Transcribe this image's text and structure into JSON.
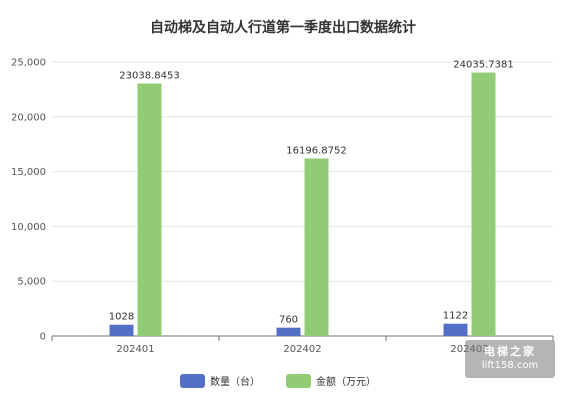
{
  "chart_data": {
    "type": "bar",
    "title": "自动梯及自动人行道第一季度出口数据统计",
    "categories": [
      "202401",
      "202402",
      "202403"
    ],
    "series": [
      {
        "name": "数量（台）",
        "color": "#5470c6",
        "values": [
          1028,
          760,
          1122
        ],
        "labels": [
          "1028",
          "760",
          "1122"
        ]
      },
      {
        "name": "金额（万元）",
        "color": "#91cc75",
        "values": [
          23038.8453,
          16196.8752,
          24035.7381
        ],
        "labels": [
          "23038.8453",
          "16196.8752",
          "24035.7381"
        ]
      }
    ],
    "ylim": [
      0,
      25000
    ],
    "yticks": [
      0,
      5000,
      10000,
      15000,
      20000,
      25000
    ],
    "ytick_labels": [
      "0",
      "5,000",
      "10,000",
      "15,000",
      "20,000",
      "25,000"
    ],
    "xlabel": "",
    "ylabel": "",
    "grid": true,
    "legend": "bottom-center"
  },
  "watermark": {
    "line1": "电梯之家",
    "line2": "lift158.com"
  }
}
